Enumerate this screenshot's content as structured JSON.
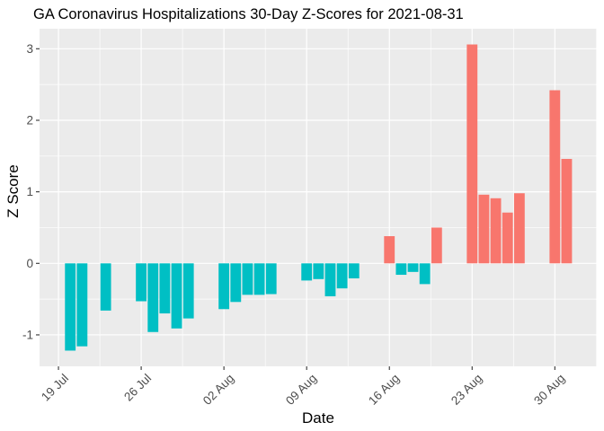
{
  "chart_data": {
    "type": "bar",
    "title": "GA Coronavirus Hospitalizations 30-Day Z-Scores for 2021-08-31",
    "xlabel": "Date",
    "ylabel": "Z Score",
    "legend": "none",
    "grid": true,
    "x_tick_labels": [
      "19 Jul",
      "26 Jul",
      "02 Aug",
      "09 Aug",
      "16 Aug",
      "23 Aug",
      "30 Aug"
    ],
    "x_tick_days": [
      0,
      7,
      14,
      21,
      28,
      35,
      42
    ],
    "x_minor_days": [
      3.5,
      10.5,
      17.5,
      24.5,
      31.5,
      38.5,
      45.5
    ],
    "y_ticks": [
      -1,
      0,
      1,
      2,
      3
    ],
    "y_tick_labels": [
      "-1",
      "0",
      "1",
      "2",
      "3"
    ],
    "y_minor": [
      -0.5,
      0.5,
      1.5,
      2.5
    ],
    "x_range_days": [
      -1.6,
      45.55
    ],
    "y_range": [
      -1.44,
      3.28
    ],
    "bar_width_days": 0.9,
    "points": [
      {
        "date": "2021-07-20",
        "day": 1,
        "z": -1.22
      },
      {
        "date": "2021-07-21",
        "day": 2,
        "z": -1.16
      },
      {
        "date": "2021-07-23",
        "day": 4,
        "z": -0.66
      },
      {
        "date": "2021-07-26",
        "day": 7,
        "z": -0.53
      },
      {
        "date": "2021-07-27",
        "day": 8,
        "z": -0.96
      },
      {
        "date": "2021-07-28",
        "day": 9,
        "z": -0.7
      },
      {
        "date": "2021-07-29",
        "day": 10,
        "z": -0.91
      },
      {
        "date": "2021-07-30",
        "day": 11,
        "z": -0.77
      },
      {
        "date": "2021-08-02",
        "day": 14,
        "z": -0.64
      },
      {
        "date": "2021-08-03",
        "day": 15,
        "z": -0.54
      },
      {
        "date": "2021-08-04",
        "day": 16,
        "z": -0.44
      },
      {
        "date": "2021-08-05",
        "day": 17,
        "z": -0.44
      },
      {
        "date": "2021-08-06",
        "day": 18,
        "z": -0.43
      },
      {
        "date": "2021-08-09",
        "day": 21,
        "z": -0.24
      },
      {
        "date": "2021-08-10",
        "day": 22,
        "z": -0.22
      },
      {
        "date": "2021-08-11",
        "day": 23,
        "z": -0.46
      },
      {
        "date": "2021-08-12",
        "day": 24,
        "z": -0.35
      },
      {
        "date": "2021-08-13",
        "day": 25,
        "z": -0.21
      },
      {
        "date": "2021-08-16",
        "day": 28,
        "z": 0.38
      },
      {
        "date": "2021-08-17",
        "day": 29,
        "z": -0.16
      },
      {
        "date": "2021-08-18",
        "day": 30,
        "z": -0.12
      },
      {
        "date": "2021-08-19",
        "day": 31,
        "z": -0.29
      },
      {
        "date": "2021-08-20",
        "day": 32,
        "z": 0.5
      },
      {
        "date": "2021-08-23",
        "day": 35,
        "z": 3.06
      },
      {
        "date": "2021-08-24",
        "day": 36,
        "z": 0.96
      },
      {
        "date": "2021-08-25",
        "day": 37,
        "z": 0.91
      },
      {
        "date": "2021-08-26",
        "day": 38,
        "z": 0.71
      },
      {
        "date": "2021-08-27",
        "day": 39,
        "z": 0.98
      },
      {
        "date": "2021-08-30",
        "day": 42,
        "z": 2.42
      },
      {
        "date": "2021-08-31",
        "day": 43,
        "z": 1.46
      }
    ],
    "colors": {
      "positive": "#F8766D",
      "negative": "#00BFC4"
    }
  },
  "style": {
    "figure_bg": "#FFFFFF",
    "panel_bg": "#EBEBEB",
    "grid_color": "#FFFFFF",
    "tick_text_color": "#4D4D4D",
    "axis_text_color": "#000000",
    "tick_mark_color": "#333333"
  }
}
